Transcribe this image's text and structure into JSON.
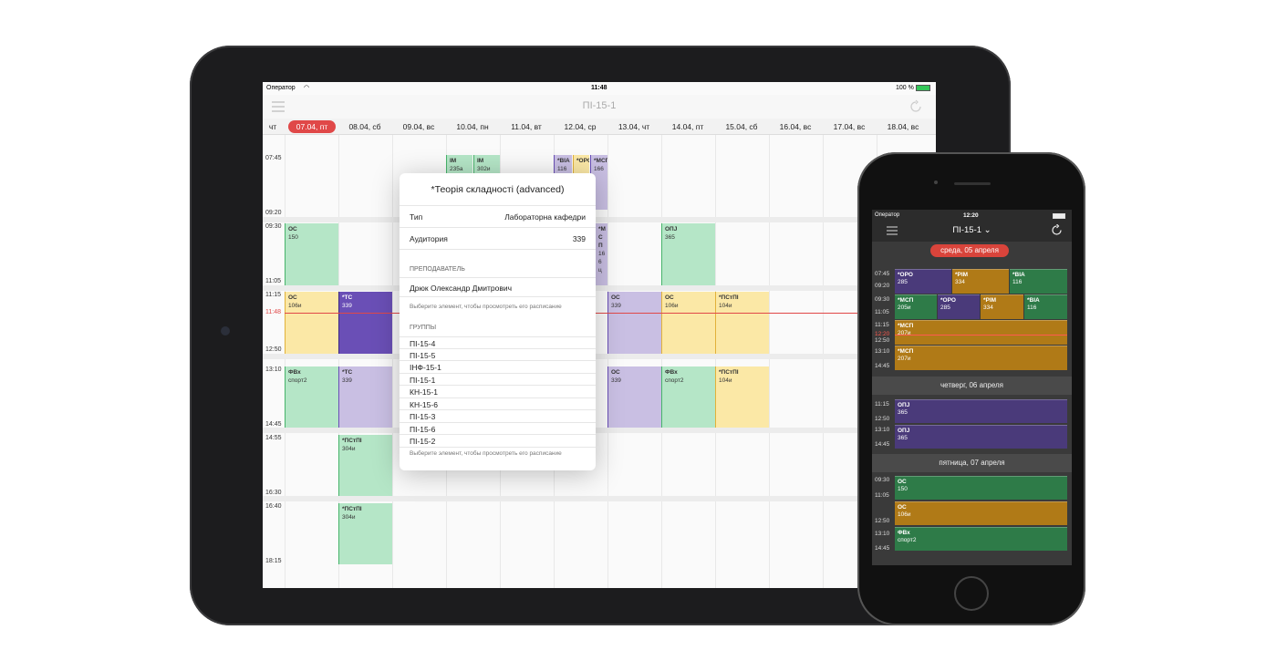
{
  "ipad": {
    "status": {
      "carrier": "Оператор",
      "time": "11:48",
      "battery": "100 %"
    },
    "nav": {
      "title": "ПІ-15-1"
    },
    "days": [
      "чт",
      "07.04, пт",
      "08.04, сб",
      "09.04, вс",
      "10.04, пн",
      "11.04, вт",
      "12.04, ср",
      "13.04, чт",
      "14.04, пт",
      "15.04, сб",
      "16.04, вс",
      "17.04, вс",
      "18.04, вс"
    ],
    "selected_day_index": 1,
    "times": [
      "07:45",
      "09:20",
      "09:30",
      "11:05",
      "11:15",
      "11:48",
      "12:50",
      "13:10",
      "14:45",
      "14:55",
      "16:30",
      "16:40",
      "18:15"
    ],
    "events": [
      {
        "title": "ІМ",
        "room": "235а"
      },
      {
        "title": "ІМ",
        "room": "302и"
      },
      {
        "title": "*ВІА",
        "room": "116"
      },
      {
        "title": "*ОРО",
        "room": ""
      },
      {
        "title": "*МСП",
        "room": "166"
      },
      {
        "title": "ОС",
        "room": "150"
      },
      {
        "title": "ОПЈ",
        "room": "365"
      },
      {
        "title": "*М С П",
        "room": "16 6 ц"
      },
      {
        "title": "ОС",
        "room": "106и"
      },
      {
        "title": "*ТС",
        "room": "339"
      },
      {
        "title": "ОС",
        "room": "339"
      },
      {
        "title": "ОС",
        "room": "106и"
      },
      {
        "title": "*ПСтПІ",
        "room": "104и"
      },
      {
        "title": "ФВх",
        "room": "спорт2"
      },
      {
        "title": "*ТС",
        "room": "339"
      },
      {
        "title": "ОС",
        "room": "339"
      },
      {
        "title": "ФВх",
        "room": "спорт2"
      },
      {
        "title": "*ПСтПІ",
        "room": "104и"
      },
      {
        "title": "*ПСтПІ",
        "room": "304и"
      },
      {
        "title": "*ПСтПІ",
        "room": "304и"
      }
    ],
    "popover": {
      "title": "*Теорія складності (advanced)",
      "type_label": "Тип",
      "type_value": "Лабораторна кафедри",
      "room_label": "Аудитория",
      "room_value": "339",
      "teacher_header": "ПРЕПОДАВАТЕЛЬ",
      "teacher": "Дрюк Олександр Дмитрович",
      "hint1": "Выберите элемент, чтобы просмотреть его расписание",
      "groups_header": "ГРУППЫ",
      "groups": [
        "ПІ-15-4",
        "ПІ-15-5",
        "ІНФ-15-1",
        "ПІ-15-1",
        "КН-15-1",
        "КН-15-6",
        "ПІ-15-3",
        "ПІ-15-6",
        "ПІ-15-2"
      ],
      "hint2": "Выберите элемент, чтобы просмотреть его расписание"
    }
  },
  "iphone": {
    "status": {
      "carrier": "Оператор",
      "time": "12:20"
    },
    "nav": {
      "title": "ПІ-15-1 ⌄"
    },
    "day1": {
      "label": "среда, 05 апреля",
      "times": [
        "07:45",
        "09:20",
        "09:30",
        "11:05",
        "11:15",
        "12:20",
        "12:50",
        "13:10",
        "14:45"
      ],
      "events": [
        {
          "title": "*ОРО",
          "room": "285"
        },
        {
          "title": "*РІМ",
          "room": "334"
        },
        {
          "title": "*ВІА",
          "room": "116"
        },
        {
          "title": "*МСП",
          "room": "205и"
        },
        {
          "title": "*ОРО",
          "room": "285"
        },
        {
          "title": "*РІМ",
          "room": "334"
        },
        {
          "title": "*ВІА",
          "room": "116"
        },
        {
          "title": "*МСП",
          "room": "207и"
        },
        {
          "title": "*МСП",
          "room": "207и"
        }
      ]
    },
    "day2": {
      "label": "четверг, 06 апреля",
      "times": [
        "11:15",
        "12:50",
        "13:10",
        "14:45"
      ],
      "events": [
        {
          "title": "ОПЈ",
          "room": "365"
        },
        {
          "title": "ОПЈ",
          "room": "365"
        }
      ]
    },
    "day3": {
      "label": "пятница, 07 апреля",
      "times": [
        "09:30",
        "11:05",
        "12:50",
        "13:10",
        "14:45"
      ],
      "events": [
        {
          "title": "ОС",
          "room": "150"
        },
        {
          "title": "ОС",
          "room": "106и"
        },
        {
          "title": "ФВх",
          "room": "спорт2"
        }
      ]
    }
  }
}
